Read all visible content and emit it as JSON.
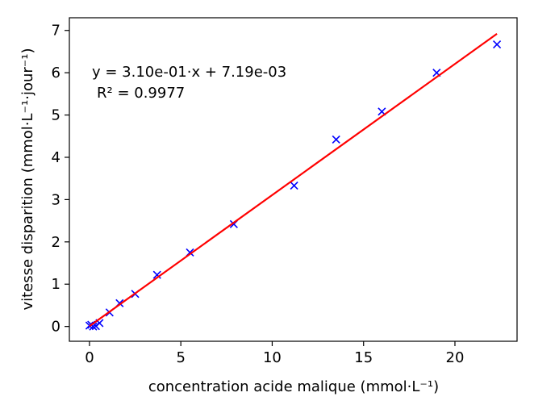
{
  "chart_data": {
    "type": "scatter",
    "title": "",
    "xlabel": "concentration acide malique (mmol·L⁻¹)",
    "ylabel": "vitesse disparition (mmol·L⁻¹·jour⁻¹)",
    "xlim": [
      -1.1,
      23.4
    ],
    "ylim": [
      -0.35,
      7.3
    ],
    "x_ticks": [
      0,
      5,
      10,
      15,
      20
    ],
    "x_tick_labels": [
      "0",
      "5",
      "10",
      "15",
      "20"
    ],
    "y_ticks": [
      0,
      1,
      2,
      3,
      4,
      5,
      6,
      7
    ],
    "y_tick_labels": [
      "0",
      "1",
      "2",
      "3",
      "4",
      "5",
      "6",
      "7"
    ],
    "grid": false,
    "series": [
      {
        "kind": "points",
        "marker": "x",
        "color": "#0000ff",
        "x": [
          0.0,
          0.1,
          0.2,
          0.35,
          0.55,
          1.1,
          1.65,
          2.5,
          3.7,
          5.5,
          7.9,
          11.2,
          13.5,
          16.0,
          19.0,
          22.3
        ],
        "y": [
          0.02,
          0.04,
          0.0,
          0.01,
          0.08,
          0.33,
          0.55,
          0.77,
          1.22,
          1.75,
          2.42,
          3.33,
          4.42,
          5.08,
          6.0,
          6.67
        ]
      },
      {
        "kind": "fit-line",
        "color": "#ff0000",
        "slope": 0.31,
        "intercept": 0.00719,
        "x_range": [
          0.0,
          22.3
        ]
      }
    ],
    "annotations": [
      "y = 3.10e-01·x + 7.19e-03",
      "R² = 0.9977"
    ]
  }
}
